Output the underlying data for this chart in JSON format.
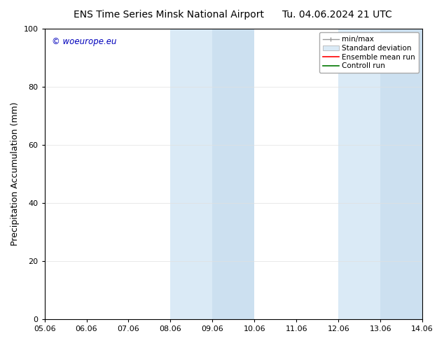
{
  "title_left": "ENS Time Series Minsk National Airport",
  "title_right": "Tu. 04.06.2024 21 UTC",
  "ylabel": "Precipitation Accumulation (mm)",
  "ylim": [
    0,
    100
  ],
  "yticks": [
    0,
    20,
    40,
    60,
    80,
    100
  ],
  "x_tick_labels": [
    "05.06",
    "06.06",
    "07.06",
    "08.06",
    "09.06",
    "10.06",
    "11.06",
    "12.06",
    "13.06",
    "14.06"
  ],
  "x_tick_positions": [
    0,
    1,
    2,
    3,
    4,
    5,
    6,
    7,
    8,
    9
  ],
  "xlim": [
    0,
    9
  ],
  "shaded_bands": [
    {
      "x_start": 3.0,
      "x_end": 4.0,
      "color": "#daeaf6"
    },
    {
      "x_start": 4.0,
      "x_end": 5.0,
      "color": "#cce0f0"
    },
    {
      "x_start": 7.0,
      "x_end": 8.0,
      "color": "#daeaf6"
    },
    {
      "x_start": 8.0,
      "x_end": 9.0,
      "color": "#cce0f0"
    }
  ],
  "watermark_text": "© woeurope.eu",
  "watermark_color": "#0000bb",
  "legend_items": [
    {
      "label": "min/max",
      "color": "#aaaaaa",
      "style": "errorbar"
    },
    {
      "label": "Standard deviation",
      "color": "#daeaf6",
      "style": "bar"
    },
    {
      "label": "Ensemble mean run",
      "color": "#ff0000",
      "style": "line"
    },
    {
      "label": "Controll run",
      "color": "#007700",
      "style": "line"
    }
  ],
  "background_color": "#ffffff",
  "grid_color": "#cccccc",
  "title_fontsize": 10,
  "tick_fontsize": 8,
  "ylabel_fontsize": 9,
  "legend_fontsize": 7.5
}
